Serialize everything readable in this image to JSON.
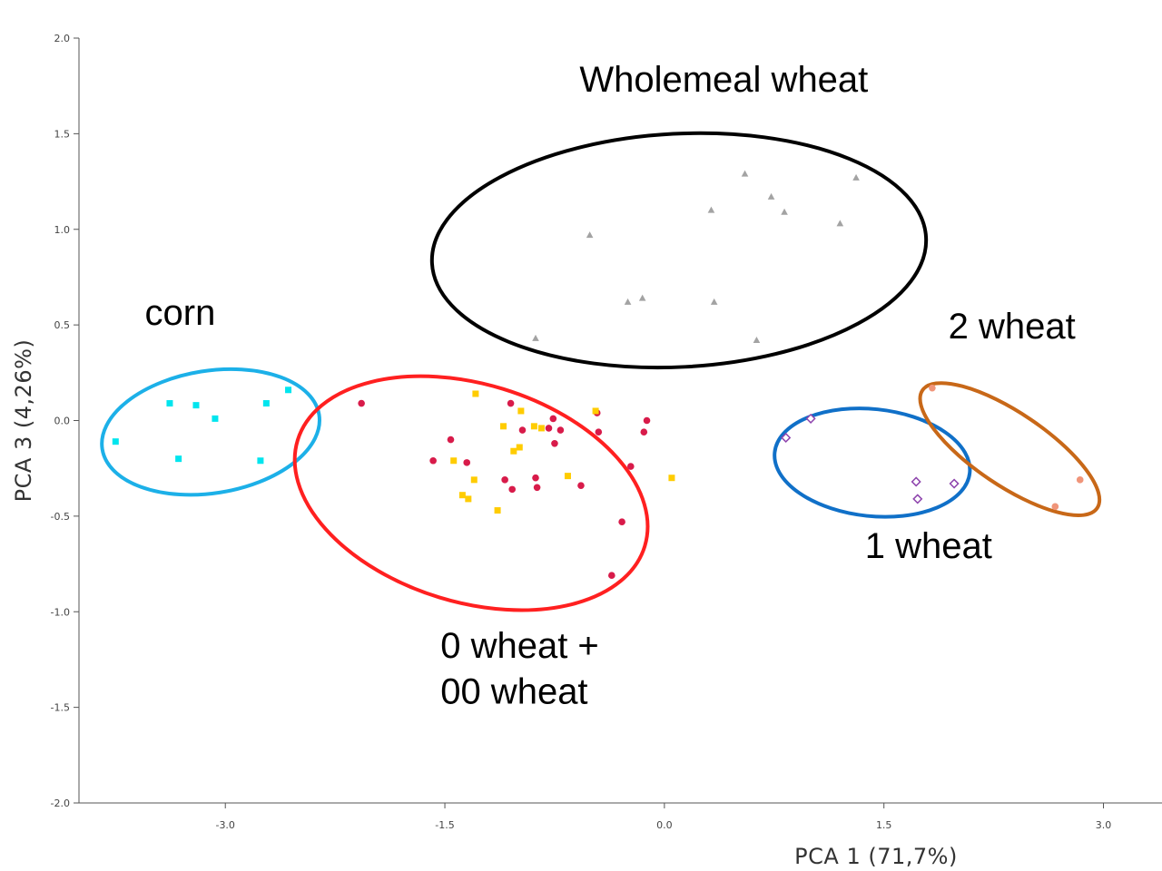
{
  "chart_data": {
    "type": "scatter",
    "xlabel": "PCA 1 (71,7%)",
    "ylabel": "PCA 3 (4,26%)",
    "xlim": [
      -4.0,
      3.4
    ],
    "ylim": [
      -2.0,
      2.0
    ],
    "x_ticks": [
      -3.0,
      -1.5,
      0.0,
      1.5,
      3.0
    ],
    "x_tick_labels": [
      "-3.0",
      "-1.5",
      "0.0",
      "1.5",
      "3.0"
    ],
    "y_ticks": [
      2.0,
      1.5,
      1.0,
      0.5,
      0.0,
      -0.5,
      -1.0,
      -1.5,
      -2.0
    ],
    "y_tick_labels": [
      "2.0",
      "1.5",
      "1.0",
      "0.5",
      "0.0",
      "-0.5",
      "-1.0",
      "-1.5",
      "-2.0"
    ],
    "grid": false,
    "series": [
      {
        "color": "#00e5ee",
        "marker": "square",
        "points": [
          [
            -3.75,
            -0.11
          ],
          [
            -3.38,
            0.09
          ],
          [
            -3.32,
            -0.2
          ],
          [
            -3.2,
            0.08
          ],
          [
            -3.07,
            0.01
          ],
          [
            -2.76,
            -0.21
          ],
          [
            -2.72,
            0.09
          ],
          [
            -2.57,
            0.16
          ]
        ]
      },
      {
        "color": "#d81b4a",
        "marker": "circle",
        "points": [
          [
            -2.07,
            0.09
          ],
          [
            -1.58,
            -0.21
          ],
          [
            -1.46,
            -0.1
          ],
          [
            -1.35,
            -0.22
          ],
          [
            -1.09,
            -0.31
          ],
          [
            -1.05,
            0.09
          ],
          [
            -1.04,
            -0.36
          ],
          [
            -0.97,
            -0.05
          ],
          [
            -0.88,
            -0.3
          ],
          [
            -0.87,
            -0.35
          ],
          [
            -0.79,
            -0.04
          ],
          [
            -0.76,
            0.01
          ],
          [
            -0.75,
            -0.12
          ],
          [
            -0.71,
            -0.05
          ],
          [
            -0.57,
            -0.34
          ],
          [
            -0.46,
            0.04
          ],
          [
            -0.45,
            -0.06
          ],
          [
            -0.36,
            -0.81
          ],
          [
            -0.29,
            -0.53
          ],
          [
            -0.23,
            -0.24
          ],
          [
            -0.14,
            -0.06
          ],
          [
            -0.12,
            0.0
          ]
        ]
      },
      {
        "color": "#ffcc00",
        "marker": "square",
        "points": [
          [
            -1.44,
            -0.21
          ],
          [
            -1.38,
            -0.39
          ],
          [
            -1.34,
            -0.41
          ],
          [
            -1.3,
            -0.31
          ],
          [
            -1.29,
            0.14
          ],
          [
            -1.14,
            -0.47
          ],
          [
            -1.1,
            -0.03
          ],
          [
            -1.03,
            -0.16
          ],
          [
            -0.99,
            -0.14
          ],
          [
            -0.98,
            0.05
          ],
          [
            -0.89,
            -0.03
          ],
          [
            -0.84,
            -0.04
          ],
          [
            -0.66,
            -0.29
          ],
          [
            -0.47,
            0.05
          ],
          [
            0.05,
            -0.3
          ]
        ]
      },
      {
        "color": "#a3a3a3",
        "marker": "triangle",
        "points": [
          [
            -0.88,
            0.43
          ],
          [
            -0.51,
            0.97
          ],
          [
            -0.25,
            0.62
          ],
          [
            -0.15,
            0.64
          ],
          [
            0.32,
            1.1
          ],
          [
            0.34,
            0.62
          ],
          [
            0.55,
            1.29
          ],
          [
            0.63,
            0.42
          ],
          [
            0.73,
            1.17
          ],
          [
            0.82,
            1.09
          ],
          [
            1.2,
            1.03
          ],
          [
            1.31,
            1.27
          ]
        ]
      },
      {
        "color": "#8e44ad",
        "marker": "diamond-open",
        "points": [
          [
            0.83,
            -0.09
          ],
          [
            1.0,
            0.01
          ],
          [
            1.72,
            -0.32
          ],
          [
            1.73,
            -0.41
          ],
          [
            1.98,
            -0.33
          ]
        ]
      },
      {
        "color": "#f0957a",
        "marker": "circle",
        "points": [
          [
            1.83,
            0.17
          ],
          [
            2.67,
            -0.45
          ],
          [
            2.84,
            -0.31
          ]
        ]
      }
    ],
    "ellipses": [
      {
        "label": "corn",
        "color": "#1cb0e8",
        "cx": -3.1,
        "cy": -0.06,
        "rx": 0.75,
        "ry": 0.32,
        "angle": -9
      },
      {
        "label": "0 wheat +|00 wheat",
        "color": "#ff2020",
        "cx": -1.32,
        "cy": -0.38,
        "rx": 1.24,
        "ry": 0.57,
        "angle": 17
      },
      {
        "label": "Wholemeal wheat",
        "color": "#000000",
        "cx": 0.1,
        "cy": 0.89,
        "rx": 1.69,
        "ry": 0.61,
        "angle": -3
      },
      {
        "label": "1 wheat",
        "color": "#1070c8",
        "cx": 1.42,
        "cy": -0.22,
        "rx": 0.67,
        "ry": 0.28,
        "angle": 6
      },
      {
        "label": "2 wheat",
        "color": "#c86818",
        "cx": 2.36,
        "cy": -0.15,
        "rx": 0.72,
        "ry": 0.19,
        "angle": 34
      }
    ],
    "annotations": [
      {
        "text": "Wholemeal wheat",
        "x": -0.58,
        "y": 1.72
      },
      {
        "text": "corn",
        "x": -3.55,
        "y": 0.5
      },
      {
        "text": "2 wheat",
        "x": 1.94,
        "y": 0.43
      },
      {
        "text": "1 wheat",
        "x": 1.37,
        "y": -0.72
      },
      {
        "text": "0 wheat +",
        "x": -1.53,
        "y": -1.24
      },
      {
        "text": "00 wheat",
        "x": -1.53,
        "y": -1.48
      }
    ]
  }
}
